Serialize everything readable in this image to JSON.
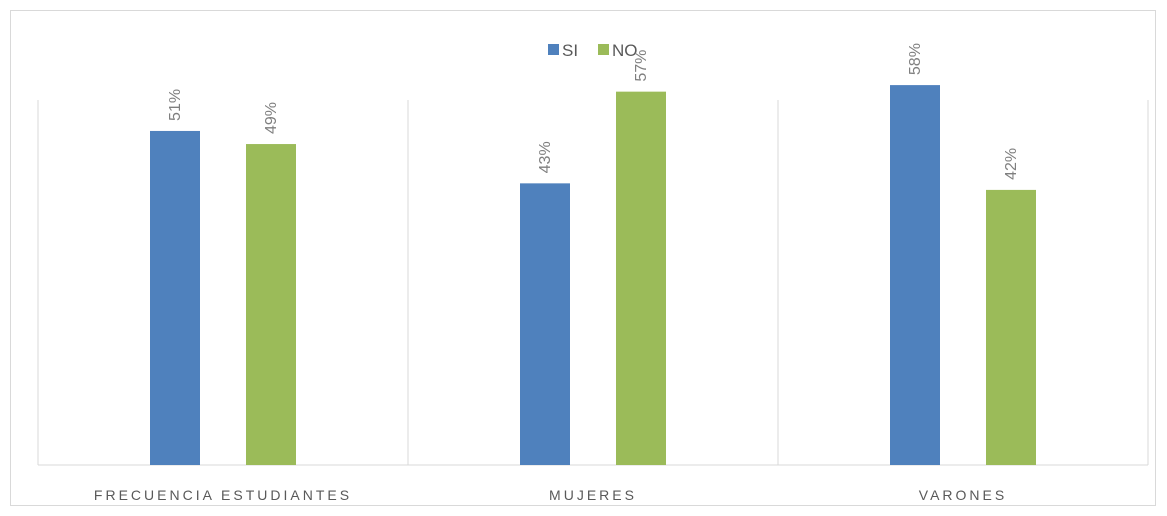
{
  "chart_data": {
    "type": "bar",
    "categories": [
      "FRECUENCIA ESTUDIANTES",
      "MUJERES",
      "VARONES"
    ],
    "series": [
      {
        "name": "SI",
        "color": "#4f81bd",
        "values": [
          51,
          43,
          58
        ],
        "labels": [
          "51%",
          "43%",
          "58%"
        ]
      },
      {
        "name": "NO",
        "color": "#9bbb59",
        "values": [
          49,
          57,
          42
        ],
        "labels": [
          "49%",
          "57%",
          "42%"
        ]
      }
    ],
    "unit": "%",
    "legend_position": "top-center",
    "grid": "vertical category separators",
    "title": "",
    "xlabel": "",
    "ylabel": ""
  }
}
